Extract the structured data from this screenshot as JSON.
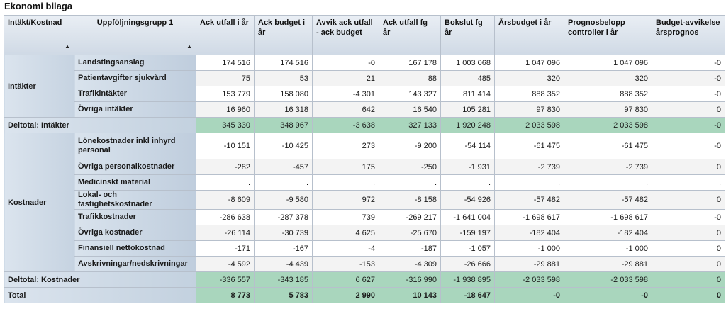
{
  "title": "Ekonomi bilaga",
  "headers": [
    "Intäkt/Kostnad",
    "Uppföljningsgrupp 1",
    "Ack utfall i år",
    "Ack budget i år",
    "Avvik ack utfall - ack budget",
    "Ack utfall fg år",
    "Bokslut fg år",
    "Årsbudget i år",
    "Prognosbelopp controller i år",
    "Budget-avvikelse årsprognos"
  ],
  "sort_glyph": "▲",
  "groups": {
    "intakter": "Intäkter",
    "kostnader": "Kostnader"
  },
  "intakter_rows": [
    {
      "label": "Landstingsanslag",
      "values": [
        "174 516",
        "174 516",
        "-0",
        "167 178",
        "1 003 068",
        "1 047 096",
        "1 047 096",
        "-0"
      ]
    },
    {
      "label": "Patientavgifter sjukvård",
      "values": [
        "75",
        "53",
        "21",
        "88",
        "485",
        "320",
        "320",
        "-0"
      ]
    },
    {
      "label": "Trafikintäkter",
      "values": [
        "153 779",
        "158 080",
        "-4 301",
        "143 327",
        "811 414",
        "888 352",
        "888 352",
        "-0"
      ]
    },
    {
      "label": "Övriga intäkter",
      "values": [
        "16 960",
        "16 318",
        "642",
        "16 540",
        "105 281",
        "97 830",
        "97 830",
        "0"
      ]
    }
  ],
  "deltotal_intakter": {
    "label": "Deltotal: Intäkter",
    "values": [
      "345 330",
      "348 967",
      "-3 638",
      "327 133",
      "1 920 248",
      "2 033 598",
      "2 033 598",
      "-0"
    ]
  },
  "kostnader_rows": [
    {
      "label": "Lönekostnader inkl inhyrd personal",
      "values": [
        "-10 151",
        "-10 425",
        "273",
        "-9 200",
        "-54 114",
        "-61 475",
        "-61 475",
        "-0"
      ]
    },
    {
      "label": "Övriga personalkostnader",
      "values": [
        "-282",
        "-457",
        "175",
        "-250",
        "-1 931",
        "-2 739",
        "-2 739",
        "0"
      ]
    },
    {
      "label": "Medicinskt material",
      "values": [
        ".",
        ".",
        ".",
        ".",
        ".",
        ".",
        ".",
        "."
      ]
    },
    {
      "label": "Lokal- och fastighetskostnader",
      "values": [
        "-8 609",
        "-9 580",
        "972",
        "-8 158",
        "-54 926",
        "-57 482",
        "-57 482",
        "0"
      ]
    },
    {
      "label": "Trafikkostnader",
      "values": [
        "-286 638",
        "-287 378",
        "739",
        "-269 217",
        "-1 641 004",
        "-1 698 617",
        "-1 698 617",
        "-0"
      ]
    },
    {
      "label": "Övriga kostnader",
      "values": [
        "-26 114",
        "-30 739",
        "4 625",
        "-25 670",
        "-159 197",
        "-182 404",
        "-182 404",
        "0"
      ]
    },
    {
      "label": "Finansiell nettokostnad",
      "values": [
        "-171",
        "-167",
        "-4",
        "-187",
        "-1 057",
        "-1 000",
        "-1 000",
        "0"
      ]
    },
    {
      "label": "Avskrivningar/nedskrivningar",
      "values": [
        "-4 592",
        "-4 439",
        "-153",
        "-4 309",
        "-26 666",
        "-29 881",
        "-29 881",
        "0"
      ]
    }
  ],
  "deltotal_kostnader": {
    "label": "Deltotal: Kostnader",
    "values": [
      "-336 557",
      "-343 185",
      "6 627",
      "-316 990",
      "-1 938 895",
      "-2 033 598",
      "-2 033 598",
      "0"
    ]
  },
  "total": {
    "label": "Total",
    "values": [
      "8 773",
      "5 783",
      "2 990",
      "10 143",
      "-18 647",
      "-0",
      "-0",
      "0"
    ]
  }
}
